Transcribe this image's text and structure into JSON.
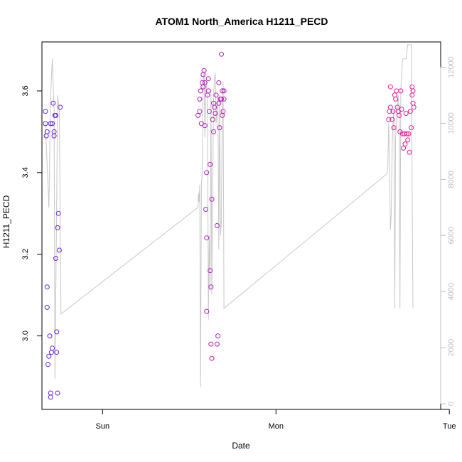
{
  "chart_data": {
    "type": "scatter",
    "title": "ATOM1 North_America H1211_PECD",
    "xlabel": "Date",
    "ylabel": "H1211_PECD",
    "x_unit": "days",
    "xlim": [
      -0.35,
      1.95
    ],
    "ylim": [
      2.82,
      3.72
    ],
    "y2lim": [
      -200,
      12900
    ],
    "x_ticks": [
      {
        "value": 0,
        "label": "Sun"
      },
      {
        "value": 1,
        "label": "Mon"
      },
      {
        "value": 2,
        "label": "Tue"
      }
    ],
    "y_ticks": [
      3.0,
      3.2,
      3.4,
      3.6
    ],
    "y2_ticks": [
      0,
      2000,
      4000,
      6000,
      8000,
      10000,
      12000
    ],
    "grid": false,
    "legend": "none",
    "point_color_start": "#5a22ee",
    "point_color_end": "#ee1a99",
    "line_color": "#c8c8c8",
    "points": [
      [
        -0.33,
        3.52
      ],
      [
        -0.33,
        3.55
      ],
      [
        -0.325,
        3.49
      ],
      [
        -0.32,
        3.5
      ],
      [
        -0.32,
        3.12
      ],
      [
        -0.32,
        3.07
      ],
      [
        -0.315,
        2.93
      ],
      [
        -0.31,
        2.95
      ],
      [
        -0.305,
        3.0
      ],
      [
        -0.3,
        3.52
      ],
      [
        -0.3,
        2.86
      ],
      [
        -0.3,
        2.85
      ],
      [
        -0.295,
        2.96
      ],
      [
        -0.29,
        2.97
      ],
      [
        -0.29,
        3.52
      ],
      [
        -0.285,
        3.57
      ],
      [
        -0.28,
        3.5
      ],
      [
        -0.28,
        3.49
      ],
      [
        -0.275,
        3.54
      ],
      [
        -0.27,
        3.54
      ],
      [
        -0.27,
        3.19
      ],
      [
        -0.265,
        3.01
      ],
      [
        -0.265,
        2.96
      ],
      [
        -0.26,
        2.86
      ],
      [
        -0.26,
        3.265
      ],
      [
        -0.255,
        3.3
      ],
      [
        -0.25,
        3.21
      ],
      [
        -0.245,
        3.56
      ],
      [
        0.55,
        3.54
      ],
      [
        0.56,
        3.55
      ],
      [
        0.56,
        3.58
      ],
      [
        0.565,
        3.6
      ],
      [
        0.57,
        3.52
      ],
      [
        0.575,
        3.62
      ],
      [
        0.58,
        3.64
      ],
      [
        0.58,
        3.61
      ],
      [
        0.585,
        3.65
      ],
      [
        0.59,
        3.62
      ],
      [
        0.59,
        3.515
      ],
      [
        0.595,
        3.31
      ],
      [
        0.6,
        3.24
      ],
      [
        0.6,
        3.4
      ],
      [
        0.6,
        3.06
      ],
      [
        0.605,
        3.59
      ],
      [
        0.61,
        3.6
      ],
      [
        0.61,
        3.63
      ],
      [
        0.615,
        3.55
      ],
      [
        0.62,
        3.42
      ],
      [
        0.62,
        3.16
      ],
      [
        0.625,
        3.12
      ],
      [
        0.625,
        2.98
      ],
      [
        0.63,
        2.945
      ],
      [
        0.63,
        3.335
      ],
      [
        0.635,
        3.53
      ],
      [
        0.64,
        3.57
      ],
      [
        0.64,
        3.5
      ],
      [
        0.645,
        3.56
      ],
      [
        0.65,
        3.545
      ],
      [
        0.655,
        3.59
      ],
      [
        0.66,
        3.27
      ],
      [
        0.66,
        2.98
      ],
      [
        0.665,
        3.0
      ],
      [
        0.67,
        3.62
      ],
      [
        0.67,
        3.57
      ],
      [
        0.675,
        3.51
      ],
      [
        0.68,
        3.58
      ],
      [
        0.685,
        3.69
      ],
      [
        0.685,
        3.58
      ],
      [
        0.69,
        3.6
      ],
      [
        0.69,
        3.54
      ],
      [
        0.695,
        3.55
      ],
      [
        0.7,
        3.58
      ],
      [
        0.7,
        3.6
      ],
      [
        1.65,
        3.53
      ],
      [
        1.655,
        3.55
      ],
      [
        1.66,
        3.56
      ],
      [
        1.66,
        3.61
      ],
      [
        1.67,
        3.53
      ],
      [
        1.675,
        3.55
      ],
      [
        1.68,
        3.51
      ],
      [
        1.685,
        3.59
      ],
      [
        1.69,
        3.58
      ],
      [
        1.695,
        3.6
      ],
      [
        1.7,
        3.56
      ],
      [
        1.705,
        3.55
      ],
      [
        1.71,
        3.54
      ],
      [
        1.715,
        3.5
      ],
      [
        1.72,
        3.6
      ],
      [
        1.725,
        3.555
      ],
      [
        1.73,
        3.495
      ],
      [
        1.735,
        3.46
      ],
      [
        1.74,
        3.495
      ],
      [
        1.745,
        3.47
      ],
      [
        1.75,
        3.545
      ],
      [
        1.755,
        3.495
      ],
      [
        1.76,
        3.48
      ],
      [
        1.765,
        3.495
      ],
      [
        1.77,
        3.45
      ],
      [
        1.775,
        3.55
      ],
      [
        1.78,
        3.51
      ],
      [
        1.785,
        3.59
      ],
      [
        1.785,
        3.61
      ],
      [
        1.79,
        3.6
      ],
      [
        1.79,
        3.57
      ],
      [
        1.795,
        3.56
      ]
    ],
    "secondary_line": [
      [
        -0.33,
        10000
      ],
      [
        -0.31,
        7000
      ],
      [
        -0.3,
        11000
      ],
      [
        -0.29,
        12300
      ],
      [
        -0.28,
        10500
      ],
      [
        -0.275,
        900
      ],
      [
        -0.265,
        7000
      ],
      [
        -0.26,
        11000
      ],
      [
        -0.25,
        10500
      ],
      [
        -0.24,
        3200
      ],
      [
        0.55,
        7000
      ],
      [
        0.553,
        7500
      ],
      [
        0.556,
        7200
      ],
      [
        0.56,
        7800
      ],
      [
        0.565,
        600
      ],
      [
        0.57,
        7800
      ],
      [
        0.575,
        8300
      ],
      [
        0.58,
        11400
      ],
      [
        0.585,
        11900
      ],
      [
        0.59,
        9500
      ],
      [
        0.595,
        11200
      ],
      [
        0.6,
        11500
      ],
      [
        0.605,
        10500
      ],
      [
        0.61,
        3000
      ],
      [
        0.615,
        6000
      ],
      [
        0.62,
        4000
      ],
      [
        0.625,
        11200
      ],
      [
        0.63,
        3900
      ],
      [
        0.635,
        7600
      ],
      [
        0.64,
        11000
      ],
      [
        0.645,
        11600
      ],
      [
        0.65,
        11800
      ],
      [
        0.655,
        10000
      ],
      [
        0.66,
        10600
      ],
      [
        0.665,
        11000
      ],
      [
        0.67,
        5500
      ],
      [
        0.675,
        11000
      ],
      [
        0.68,
        6000
      ],
      [
        0.685,
        6500
      ],
      [
        0.69,
        10500
      ],
      [
        0.695,
        11500
      ],
      [
        0.7,
        3400
      ],
      [
        1.64,
        8200
      ],
      [
        1.645,
        8500
      ],
      [
        1.65,
        10000
      ],
      [
        1.66,
        6200
      ],
      [
        1.665,
        6800
      ],
      [
        1.67,
        9200
      ],
      [
        1.675,
        10000
      ],
      [
        1.68,
        10500
      ],
      [
        1.685,
        3400
      ],
      [
        1.69,
        9500
      ],
      [
        1.7,
        10500
      ],
      [
        1.705,
        11000
      ],
      [
        1.71,
        10500
      ],
      [
        1.715,
        3400
      ],
      [
        1.72,
        11200
      ],
      [
        1.73,
        12300
      ],
      [
        1.74,
        12300
      ],
      [
        1.75,
        12300
      ],
      [
        1.76,
        12800
      ],
      [
        1.77,
        12800
      ],
      [
        1.78,
        12800
      ],
      [
        1.785,
        8000
      ],
      [
        1.79,
        3400
      ]
    ]
  }
}
